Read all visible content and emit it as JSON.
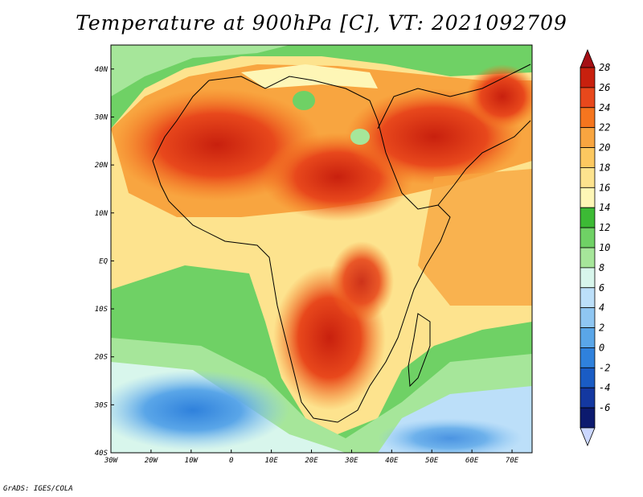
{
  "title": "Temperature at 900hPa [C], VT: 2021092709",
  "credit": "GrADS: IGES/COLA",
  "map": {
    "lat_labels": [
      "40N",
      "30N",
      "20N",
      "10N",
      "EQ",
      "10S",
      "20S",
      "30S",
      "40S"
    ],
    "lon_labels": [
      "30W",
      "20W",
      "10W",
      "0",
      "10E",
      "20E",
      "30E",
      "40E",
      "50E",
      "60E",
      "70E"
    ],
    "lat_range": [
      -40,
      45
    ],
    "lon_range": [
      -30,
      75
    ]
  },
  "colorbar": {
    "labels": [
      "28",
      "26",
      "24",
      "22",
      "20",
      "18",
      "16",
      "14",
      "12",
      "10",
      "8",
      "6",
      "4",
      "2",
      "0",
      "-2",
      "-4",
      "-6"
    ],
    "colors": [
      "#a50f15",
      "#c8200e",
      "#e8481c",
      "#f5751e",
      "#f8a540",
      "#fcc860",
      "#fde38e",
      "#fef6b6",
      "#3cba35",
      "#6fd165",
      "#a6e69a",
      "#d8f6ec",
      "#bcdff9",
      "#8fc6f2",
      "#5aa6e8",
      "#2f81dc",
      "#1a5cc4",
      "#1438a0",
      "#0c1a6e",
      "#cbd7ff"
    ]
  }
}
